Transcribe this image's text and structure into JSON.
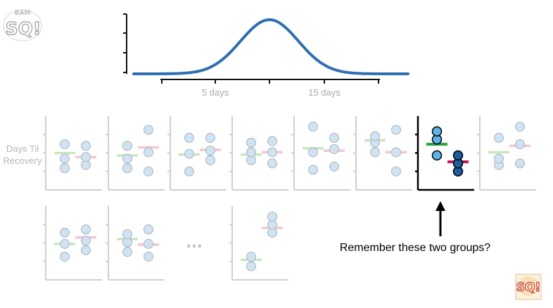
{
  "logo": {
    "text": "SQ!",
    "banner": "BAM",
    "icon": "statquest-logo-icon"
  },
  "logo_small": {
    "text": "SQ!",
    "icon": "statquest-logo-small-icon"
  },
  "distribution": {
    "type": "normal-curve",
    "x_tick_labels": [
      "5 days",
      "15 days"
    ],
    "curve_color": "#2e6fb0"
  },
  "panels": {
    "y_label_lines": [
      "Days Til",
      "Recovery"
    ],
    "ellipsis": "...",
    "faded_colors": {
      "point": "#cfe3f2",
      "group_a_mean": "#c8e6c0",
      "group_b_mean": "#f4c6d5"
    },
    "highlight_colors": {
      "group_a_point": "#5bb3e8",
      "group_b_point": "#1b5d9e",
      "group_a_mean": "#27a238",
      "group_b_mean": "#c2185b"
    },
    "samples": [
      {
        "id": 1,
        "group_a": [
          1.0,
          1.6,
          2.5
        ],
        "group_b": [
          1.2,
          1.7,
          2.4
        ],
        "mean_a": 1.95,
        "mean_b": 1.7
      },
      {
        "id": 2,
        "group_a": [
          1.0,
          1.6,
          2.4
        ],
        "group_b": [
          0.8,
          2.0,
          3.4
        ],
        "mean_a": 1.8,
        "mean_b": 2.3
      },
      {
        "id": 3,
        "group_a": [
          0.8,
          1.9,
          2.9
        ],
        "group_b": [
          1.5,
          2.1,
          2.9
        ],
        "mean_a": 1.85,
        "mean_b": 2.15
      },
      {
        "id": 4,
        "group_a": [
          1.5,
          2.0,
          2.6
        ],
        "group_b": [
          1.3,
          2.0,
          2.7
        ],
        "mean_a": 1.85,
        "mean_b": 2.0
      },
      {
        "id": 5,
        "group_a": [
          0.9,
          2.0,
          3.6
        ],
        "group_b": [
          1.1,
          2.2,
          2.9
        ],
        "mean_a": 2.25,
        "mean_b": 2.1
      },
      {
        "id": 6,
        "group_a": [
          2.0,
          2.6,
          3.0
        ],
        "group_b": [
          0.8,
          2.0,
          3.4
        ],
        "mean_a": 2.75,
        "mean_b": 2.0
      },
      {
        "id": 7,
        "highlighted": true,
        "group_a": [
          1.8,
          2.8,
          3.3
        ],
        "group_b": [
          0.8,
          1.3,
          1.8
        ],
        "mean_a": 2.5,
        "mean_b": 1.4
      },
      {
        "id": 8,
        "group_a": [
          1.2,
          1.6,
          2.9
        ],
        "group_b": [
          1.3,
          2.5,
          3.6
        ],
        "mean_a": 2.0,
        "mean_b": 2.4
      },
      {
        "id": 9,
        "group_a": [
          1.1,
          1.9,
          2.6
        ],
        "group_b": [
          1.5,
          2.1,
          2.8
        ],
        "mean_a": 1.9,
        "mean_b": 2.3
      },
      {
        "id": 10,
        "group_a": [
          1.4,
          2.0,
          2.5
        ],
        "group_b": [
          1.1,
          1.9,
          2.8
        ],
        "mean_a": 2.2,
        "mean_b": 1.85
      },
      {
        "id": 11,
        "group_a": [
          0.5,
          1.1
        ],
        "group_b": [
          2.6,
          3.1,
          3.6
        ],
        "mean_a": 0.9,
        "mean_b": 2.9
      }
    ]
  },
  "annotation": {
    "text": "Remember these two groups?",
    "arrow_icon": "up-arrow-icon"
  }
}
